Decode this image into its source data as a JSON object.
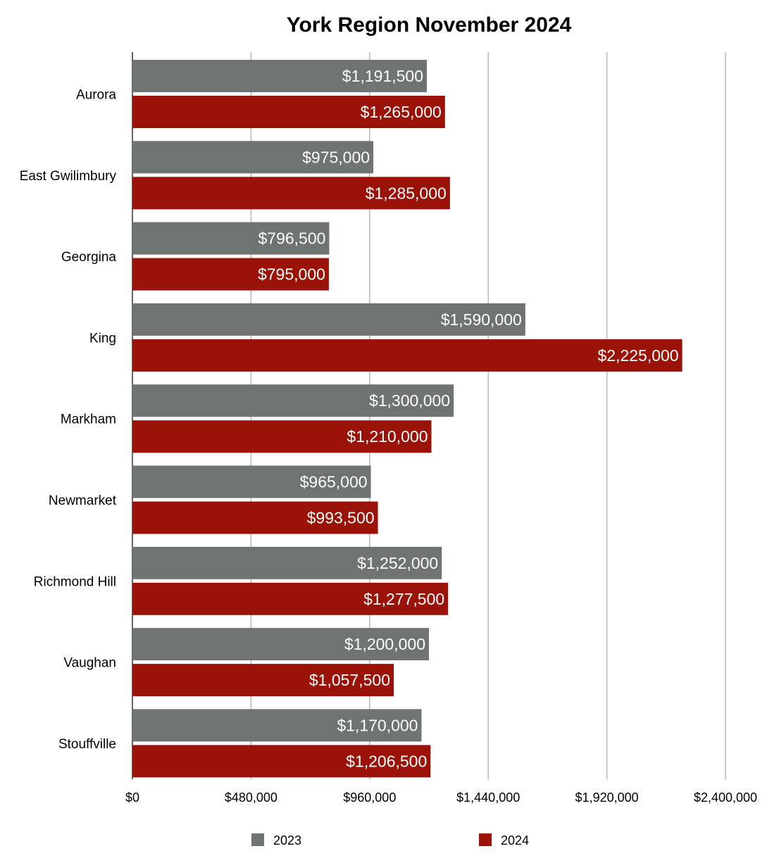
{
  "chart_data": {
    "type": "bar",
    "orientation": "horizontal",
    "title": "York Region November 2024",
    "xlabel": "",
    "ylabel": "",
    "xlim": [
      0,
      2400000
    ],
    "x_ticks": [
      0,
      480000,
      960000,
      1440000,
      1920000,
      2400000
    ],
    "x_tick_labels": [
      "$0",
      "$480,000",
      "$960,000",
      "$1,440,000",
      "$1,920,000",
      "$2,400,000"
    ],
    "grid": true,
    "legend_position": "bottom",
    "categories": [
      "Aurora",
      "East Gwilimbury",
      "Georgina",
      "King",
      "Markham",
      "Newmarket",
      "Richmond Hill",
      "Vaughan",
      "Stouffville"
    ],
    "series": [
      {
        "name": "2023",
        "color": "#6f7470",
        "values": [
          1191500,
          975000,
          796500,
          1590000,
          1300000,
          965000,
          1252000,
          1200000,
          1170000
        ],
        "labels": [
          "$1,191,500",
          "$975,000",
          "$796,500",
          "$1,590,000",
          "$1,300,000",
          "$965,000",
          "$1,252,000",
          "$1,200,000",
          "$1,170,000"
        ]
      },
      {
        "name": "2024",
        "color": "#9a1208",
        "values": [
          1265000,
          1285000,
          795000,
          2225000,
          1210000,
          993500,
          1277500,
          1057500,
          1206500
        ],
        "labels": [
          "$1,265,000",
          "$1,285,000",
          "$795,000",
          "$2,225,000",
          "$1,210,000",
          "$993,500",
          "$1,277,500",
          "$1,057,500",
          "$1,206,500"
        ]
      }
    ]
  }
}
